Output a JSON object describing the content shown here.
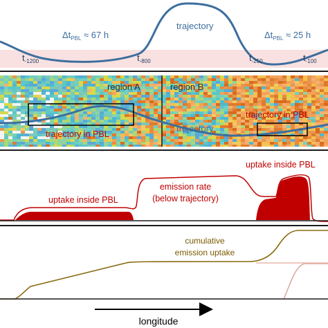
{
  "panel_top": {
    "trajectory_label": "trajectory",
    "dt_left": {
      "prefix": "Δt",
      "sub": "PBL",
      "suffix": " ≈ 67 h"
    },
    "dt_right": {
      "prefix": "Δt",
      "sub": "PBL",
      "suffix": " ≈ 25 h"
    },
    "times": [
      {
        "base": "t",
        "sub": "-1200"
      },
      {
        "base": "t",
        "sub": "-800"
      },
      {
        "base": "t",
        "sub": "-250"
      },
      {
        "base": "t",
        "sub": "-100"
      }
    ]
  },
  "panel_map": {
    "region_a": "region A",
    "region_b": "region B",
    "traj_in_pbl_left": "trajectory in PBL",
    "traj_in_pbl_right": "trajectory in PBL",
    "trajectory_label": "trajectory"
  },
  "panel_emission": {
    "uptake_left": "uptake inside PBL",
    "uptake_right": "uptake inside PBL",
    "emission_line1": "emission rate",
    "emission_line2": "(below trajectory)"
  },
  "panel_cumulative": {
    "line1": "cumulative",
    "line2": "emission uptake"
  },
  "axis": {
    "xlabel": "longitude"
  },
  "colors": {
    "trajectory": "#3c6e9e",
    "pbl_band": "#f6dcdc",
    "emission": "#c00000",
    "cumulative": "#8a6a10",
    "cumulative_light": "#d8a89c"
  }
}
